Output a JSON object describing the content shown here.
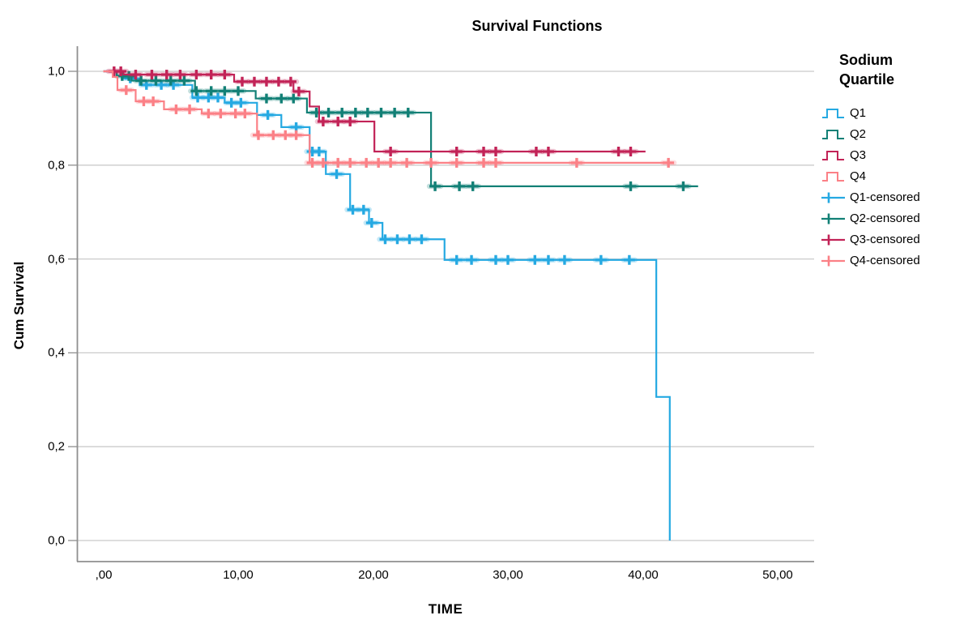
{
  "legend": {
    "title_lines": [
      "Sodium",
      "Quartile"
    ],
    "entries": [
      {
        "label": "Q1",
        "glyph": "step",
        "color": "#25A9E2"
      },
      {
        "label": "Q2",
        "glyph": "step",
        "color": "#128076"
      },
      {
        "label": "Q3",
        "glyph": "step",
        "color": "#C22357"
      },
      {
        "label": "Q4",
        "glyph": "step",
        "color": "#FB8086"
      },
      {
        "label": "Q1-censored",
        "glyph": "censored",
        "color": "#25A9E2"
      },
      {
        "label": "Q2-censored",
        "glyph": "censored",
        "color": "#128076"
      },
      {
        "label": "Q3-censored",
        "glyph": "censored",
        "color": "#C22357"
      },
      {
        "label": "Q4-censored",
        "glyph": "censored",
        "color": "#FB8086"
      }
    ]
  },
  "chart_data": {
    "type": "line",
    "subtype": "kaplan-meier-step-survival",
    "title": "Survival Functions",
    "xlabel": "TIME",
    "ylabel": "Cum Survival",
    "x_tick_labels": [
      ",00",
      "10,00",
      "20,00",
      "30,00",
      "40,00",
      "50,00"
    ],
    "y_tick_labels": [
      "1,0",
      "0,8",
      "0,6",
      "0,4",
      "0,2",
      "0,0"
    ],
    "x_ticks": [
      0,
      10,
      20,
      30,
      40,
      50
    ],
    "y_ticks": [
      1.0,
      0.8,
      0.6,
      0.4,
      0.2,
      0.0
    ],
    "xlim": [
      -2,
      52
    ],
    "ylim": [
      0.0,
      1.0
    ],
    "grid": "horizontal-only",
    "legend_position": "right",
    "series": [
      {
        "name": "Q1",
        "color": "#25A9E2",
        "steps": [
          [
            0,
            1.0
          ],
          [
            1.5,
            0.985
          ],
          [
            2.7,
            0.971
          ],
          [
            6.6,
            0.944
          ],
          [
            9.0,
            0.933
          ],
          [
            11.4,
            0.907
          ],
          [
            13.2,
            0.881
          ],
          [
            15.3,
            0.829
          ],
          [
            16.5,
            0.781
          ],
          [
            18.3,
            0.705
          ],
          [
            19.7,
            0.677
          ],
          [
            20.7,
            0.642
          ],
          [
            25.3,
            0.598
          ],
          [
            41.0,
            0.306
          ],
          [
            42.0,
            0.0
          ]
        ],
        "end_time": 42.0,
        "censored": [
          [
            2.0,
            0.985
          ],
          [
            3.2,
            0.971
          ],
          [
            4.3,
            0.971
          ],
          [
            5.2,
            0.971
          ],
          [
            7.0,
            0.944
          ],
          [
            7.8,
            0.944
          ],
          [
            8.5,
            0.944
          ],
          [
            9.5,
            0.933
          ],
          [
            10.2,
            0.933
          ],
          [
            12.2,
            0.907
          ],
          [
            14.3,
            0.881
          ],
          [
            15.5,
            0.829
          ],
          [
            16.0,
            0.829
          ],
          [
            17.3,
            0.781
          ],
          [
            18.5,
            0.705
          ],
          [
            19.3,
            0.705
          ],
          [
            19.9,
            0.677
          ],
          [
            20.9,
            0.642
          ],
          [
            21.8,
            0.642
          ],
          [
            22.7,
            0.642
          ],
          [
            23.6,
            0.642
          ],
          [
            26.2,
            0.598
          ],
          [
            27.3,
            0.598
          ],
          [
            29.1,
            0.598
          ],
          [
            30.0,
            0.598
          ],
          [
            32.0,
            0.598
          ],
          [
            33.0,
            0.598
          ],
          [
            34.2,
            0.598
          ],
          [
            36.9,
            0.598
          ],
          [
            39.0,
            0.598
          ]
        ]
      },
      {
        "name": "Q2",
        "color": "#128076",
        "steps": [
          [
            0,
            1.0
          ],
          [
            1.0,
            0.99
          ],
          [
            2.1,
            0.98
          ],
          [
            6.8,
            0.958
          ],
          [
            11.3,
            0.942
          ],
          [
            15.1,
            0.912
          ],
          [
            24.3,
            0.755
          ]
        ],
        "end_time": 44.1,
        "censored": [
          [
            1.4,
            0.99
          ],
          [
            1.9,
            0.99
          ],
          [
            2.8,
            0.98
          ],
          [
            3.9,
            0.98
          ],
          [
            5.0,
            0.98
          ],
          [
            6.0,
            0.98
          ],
          [
            6.9,
            0.958
          ],
          [
            8.0,
            0.958
          ],
          [
            9.0,
            0.958
          ],
          [
            10.0,
            0.958
          ],
          [
            12.1,
            0.942
          ],
          [
            13.2,
            0.942
          ],
          [
            14.1,
            0.942
          ],
          [
            15.8,
            0.912
          ],
          [
            16.7,
            0.912
          ],
          [
            17.7,
            0.912
          ],
          [
            18.7,
            0.912
          ],
          [
            19.6,
            0.912
          ],
          [
            20.6,
            0.912
          ],
          [
            21.6,
            0.912
          ],
          [
            22.6,
            0.912
          ],
          [
            24.6,
            0.755
          ],
          [
            26.4,
            0.755
          ],
          [
            27.4,
            0.755
          ],
          [
            39.1,
            0.755
          ],
          [
            43.0,
            0.755
          ]
        ]
      },
      {
        "name": "Q3",
        "color": "#C22357",
        "steps": [
          [
            0,
            1.0
          ],
          [
            1.5,
            0.993
          ],
          [
            9.7,
            0.978
          ],
          [
            14.1,
            0.957
          ],
          [
            15.3,
            0.925
          ],
          [
            16.0,
            0.893
          ],
          [
            20.1,
            0.829
          ]
        ],
        "end_time": 40.2,
        "censored": [
          [
            0.8,
            1.0
          ],
          [
            1.3,
            1.0
          ],
          [
            2.4,
            0.993
          ],
          [
            3.6,
            0.993
          ],
          [
            4.7,
            0.993
          ],
          [
            5.7,
            0.993
          ],
          [
            6.9,
            0.993
          ],
          [
            8.0,
            0.993
          ],
          [
            9.0,
            0.993
          ],
          [
            10.3,
            0.978
          ],
          [
            11.2,
            0.978
          ],
          [
            12.1,
            0.978
          ],
          [
            13.0,
            0.978
          ],
          [
            13.9,
            0.978
          ],
          [
            14.5,
            0.957
          ],
          [
            16.3,
            0.893
          ],
          [
            17.4,
            0.893
          ],
          [
            18.3,
            0.893
          ],
          [
            21.3,
            0.829
          ],
          [
            26.2,
            0.829
          ],
          [
            28.2,
            0.829
          ],
          [
            29.1,
            0.829
          ],
          [
            32.1,
            0.829
          ],
          [
            33.0,
            0.829
          ],
          [
            38.2,
            0.829
          ],
          [
            39.1,
            0.829
          ]
        ]
      },
      {
        "name": "Q4",
        "color": "#FB8086",
        "steps": [
          [
            0,
            1.0
          ],
          [
            0.7,
            0.988
          ],
          [
            1.05,
            0.96
          ],
          [
            2.4,
            0.936
          ],
          [
            4.5,
            0.919
          ],
          [
            7.3,
            0.91
          ],
          [
            11.4,
            0.864
          ],
          [
            15.3,
            0.805
          ]
        ],
        "end_time": 42.0,
        "censored": [
          [
            1.7,
            0.96
          ],
          [
            3.0,
            0.936
          ],
          [
            3.7,
            0.936
          ],
          [
            5.4,
            0.919
          ],
          [
            6.4,
            0.919
          ],
          [
            7.8,
            0.91
          ],
          [
            8.7,
            0.91
          ],
          [
            9.8,
            0.91
          ],
          [
            10.5,
            0.91
          ],
          [
            11.5,
            0.864
          ],
          [
            12.6,
            0.864
          ],
          [
            13.5,
            0.864
          ],
          [
            14.3,
            0.864
          ],
          [
            15.5,
            0.805
          ],
          [
            16.3,
            0.805
          ],
          [
            17.4,
            0.805
          ],
          [
            18.3,
            0.805
          ],
          [
            19.5,
            0.805
          ],
          [
            20.4,
            0.805
          ],
          [
            21.3,
            0.805
          ],
          [
            22.5,
            0.805
          ],
          [
            24.3,
            0.805
          ],
          [
            26.2,
            0.805
          ],
          [
            28.2,
            0.805
          ],
          [
            29.1,
            0.805
          ],
          [
            35.1,
            0.805
          ],
          [
            41.9,
            0.805
          ]
        ]
      }
    ]
  }
}
